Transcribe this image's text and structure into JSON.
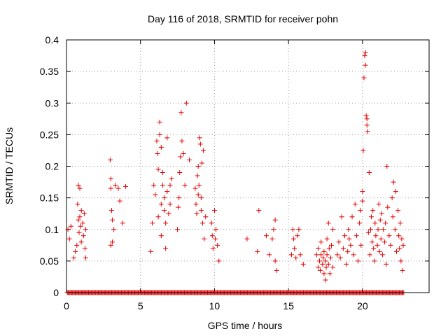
{
  "chart_data": {
    "type": "scatter",
    "title": "Day 116 of 2018, SRMTID for receiver pohn",
    "xlabel": "GPS time / hours",
    "ylabel": "SRMTID / TECUs",
    "xlim": [
      0,
      24.5
    ],
    "ylim": [
      0,
      0.4
    ],
    "x_ticks": [
      0,
      5,
      10,
      15,
      20
    ],
    "x_tick_labels": [
      "0",
      "5",
      "10",
      "15",
      "20"
    ],
    "y_ticks": [
      0,
      0.05,
      0.1,
      0.15,
      0.2,
      0.25,
      0.3,
      0.35,
      0.4
    ],
    "y_tick_labels": [
      "0",
      "0.05",
      "0.1",
      "0.15",
      "0.2",
      "0.25",
      "0.3",
      "0.35",
      "0.4"
    ],
    "grid": true,
    "marker": "+",
    "series": [
      {
        "name": "SRMTID",
        "color": "#e00000",
        "points": [
          [
            0.1,
            0.1
          ],
          [
            0.2,
            0.085
          ],
          [
            0.3,
            0.105
          ],
          [
            0.5,
            0.055
          ],
          [
            0.6,
            0.065
          ],
          [
            0.7,
            0.075
          ],
          [
            0.75,
            0.14
          ],
          [
            0.8,
            0.17
          ],
          [
            0.8,
            0.115
          ],
          [
            0.85,
            0.095
          ],
          [
            0.9,
            0.165
          ],
          [
            0.9,
            0.12
          ],
          [
            0.95,
            0.105
          ],
          [
            1.0,
            0.08
          ],
          [
            1.0,
            0.13
          ],
          [
            1.1,
            0.11
          ],
          [
            1.15,
            0.09
          ],
          [
            1.2,
            0.125
          ],
          [
            1.25,
            0.07
          ],
          [
            1.3,
            0.055
          ],
          [
            1.3,
            0.1
          ],
          [
            2.95,
            0.21
          ],
          [
            3.0,
            0.18
          ],
          [
            3.0,
            0.165
          ],
          [
            3.05,
            0.13
          ],
          [
            3.1,
            0.115
          ],
          [
            3.1,
            0.08
          ],
          [
            3.0,
            0.075
          ],
          [
            3.2,
            0.1
          ],
          [
            3.3,
            0.17
          ],
          [
            3.5,
            0.165
          ],
          [
            3.6,
            0.145
          ],
          [
            3.8,
            0.11
          ],
          [
            4.0,
            0.168
          ],
          [
            5.7,
            0.065
          ],
          [
            5.8,
            0.11
          ],
          [
            5.9,
            0.17
          ],
          [
            6.0,
            0.155
          ],
          [
            6.1,
            0.24
          ],
          [
            6.15,
            0.22
          ],
          [
            6.2,
            0.195
          ],
          [
            6.2,
            0.12
          ],
          [
            6.3,
            0.27
          ],
          [
            6.3,
            0.25
          ],
          [
            6.4,
            0.23
          ],
          [
            6.4,
            0.09
          ],
          [
            6.4,
            0.14
          ],
          [
            6.5,
            0.17
          ],
          [
            6.5,
            0.19
          ],
          [
            6.6,
            0.13
          ],
          [
            6.6,
            0.15
          ],
          [
            6.7,
            0.07
          ],
          [
            6.7,
            0.11
          ],
          [
            6.8,
            0.245
          ],
          [
            6.8,
            0.16
          ],
          [
            6.9,
            0.125
          ],
          [
            7.0,
            0.17
          ],
          [
            7.0,
            0.14
          ],
          [
            7.1,
            0.18
          ],
          [
            7.5,
            0.1
          ],
          [
            7.55,
            0.135
          ],
          [
            7.6,
            0.15
          ],
          [
            7.65,
            0.19
          ],
          [
            7.7,
            0.215
          ],
          [
            7.75,
            0.285
          ],
          [
            7.8,
            0.24
          ],
          [
            7.9,
            0.22
          ],
          [
            8.0,
            0.17
          ],
          [
            8.1,
            0.3
          ],
          [
            8.3,
            0.21
          ],
          [
            8.7,
            0.165
          ],
          [
            8.75,
            0.14
          ],
          [
            8.8,
            0.125
          ],
          [
            8.85,
            0.185
          ],
          [
            8.9,
            0.2
          ],
          [
            8.9,
            0.155
          ],
          [
            8.95,
            0.17
          ],
          [
            9.0,
            0.245
          ],
          [
            9.05,
            0.235
          ],
          [
            9.1,
            0.15
          ],
          [
            9.1,
            0.13
          ],
          [
            9.15,
            0.205
          ],
          [
            9.2,
            0.11
          ],
          [
            9.25,
            0.225
          ],
          [
            9.3,
            0.085
          ],
          [
            9.4,
            0.12
          ],
          [
            9.8,
            0.11
          ],
          [
            9.85,
            0.09
          ],
          [
            9.9,
            0.07
          ],
          [
            10.0,
            0.13
          ],
          [
            10.05,
            0.085
          ],
          [
            10.1,
            0.1
          ],
          [
            10.2,
            0.075
          ],
          [
            10.3,
            0.05
          ],
          [
            12.2,
            0.085
          ],
          [
            12.9,
            0.065
          ],
          [
            13.0,
            0.13
          ],
          [
            13.5,
            0.09
          ],
          [
            13.7,
            0.06
          ],
          [
            13.9,
            0.085
          ],
          [
            14.0,
            0.1
          ],
          [
            14.1,
            0.115
          ],
          [
            14.1,
            0.05
          ],
          [
            14.2,
            0.035
          ],
          [
            15.2,
            0.06
          ],
          [
            15.3,
            0.1
          ],
          [
            15.35,
            0.085
          ],
          [
            15.4,
            0.07
          ],
          [
            15.5,
            0.055
          ],
          [
            15.6,
            0.09
          ],
          [
            15.7,
            0.1
          ],
          [
            15.8,
            0.06
          ],
          [
            16.0,
            0.045
          ],
          [
            16.9,
            0.06
          ],
          [
            17.0,
            0.04
          ],
          [
            17.0,
            0.07
          ],
          [
            17.1,
            0.05
          ],
          [
            17.15,
            0.035
          ],
          [
            17.2,
            0.08
          ],
          [
            17.2,
            0.06
          ],
          [
            17.3,
            0.045
          ],
          [
            17.35,
            0.055
          ],
          [
            17.4,
            0.03
          ],
          [
            17.4,
            0.065
          ],
          [
            17.5,
            0.02
          ],
          [
            17.5,
            0.05
          ],
          [
            17.55,
            0.04
          ],
          [
            17.6,
            0.085
          ],
          [
            17.6,
            0.06
          ],
          [
            17.7,
            0.045
          ],
          [
            17.7,
            0.11
          ],
          [
            17.75,
            0.07
          ],
          [
            17.8,
            0.03
          ],
          [
            17.85,
            0.055
          ],
          [
            17.9,
            0.075
          ],
          [
            18.0,
            0.04
          ],
          [
            18.0,
            0.1
          ],
          [
            18.3,
            0.06
          ],
          [
            18.4,
            0.08
          ],
          [
            18.5,
            0.055
          ],
          [
            18.6,
            0.12
          ],
          [
            18.7,
            0.07
          ],
          [
            18.8,
            0.09
          ],
          [
            18.9,
            0.045
          ],
          [
            19.0,
            0.065
          ],
          [
            19.05,
            0.1
          ],
          [
            19.1,
            0.085
          ],
          [
            19.2,
            0.075
          ],
          [
            19.3,
            0.12
          ],
          [
            19.4,
            0.06
          ],
          [
            19.5,
            0.14
          ],
          [
            19.6,
            0.09
          ],
          [
            19.7,
            0.05
          ],
          [
            19.8,
            0.11
          ],
          [
            19.85,
            0.13
          ],
          [
            19.9,
            0.075
          ],
          [
            20.0,
            0.145
          ],
          [
            20.0,
            0.16
          ],
          [
            20.05,
            0.225
          ],
          [
            20.1,
            0.34
          ],
          [
            20.15,
            0.375
          ],
          [
            20.2,
            0.38
          ],
          [
            20.2,
            0.36
          ],
          [
            20.25,
            0.28
          ],
          [
            20.3,
            0.275
          ],
          [
            20.3,
            0.265
          ],
          [
            20.35,
            0.255
          ],
          [
            20.4,
            0.095
          ],
          [
            20.45,
            0.19
          ],
          [
            20.5,
            0.06
          ],
          [
            20.55,
            0.1
          ],
          [
            20.6,
            0.12
          ],
          [
            20.65,
            0.08
          ],
          [
            20.7,
            0.13
          ],
          [
            20.75,
            0.07
          ],
          [
            20.8,
            0.05
          ],
          [
            20.85,
            0.11
          ],
          [
            20.9,
            0.09
          ],
          [
            21.0,
            0.075
          ],
          [
            21.05,
            0.1
          ],
          [
            21.1,
            0.14
          ],
          [
            21.15,
            0.065
          ],
          [
            21.2,
            0.115
          ],
          [
            21.25,
            0.085
          ],
          [
            21.3,
            0.125
          ],
          [
            21.35,
            0.06
          ],
          [
            21.4,
            0.1
          ],
          [
            21.5,
            0.08
          ],
          [
            21.55,
            0.11
          ],
          [
            21.6,
            0.045
          ],
          [
            21.65,
            0.2
          ],
          [
            21.7,
            0.135
          ],
          [
            21.8,
            0.09
          ],
          [
            21.9,
            0.075
          ],
          [
            22.0,
            0.15
          ],
          [
            22.05,
            0.12
          ],
          [
            22.1,
            0.175
          ],
          [
            22.2,
            0.1
          ],
          [
            22.25,
            0.16
          ],
          [
            22.3,
            0.065
          ],
          [
            22.4,
            0.13
          ],
          [
            22.45,
            0.09
          ],
          [
            22.5,
            0.07
          ],
          [
            22.55,
            0.11
          ],
          [
            22.6,
            0.05
          ],
          [
            22.65,
            0.085
          ],
          [
            22.7,
            0.035
          ],
          [
            22.75,
            0.075
          ]
        ]
      }
    ],
    "baseline": {
      "value": 0,
      "x_range": [
        0.05,
        22.8
      ]
    }
  }
}
